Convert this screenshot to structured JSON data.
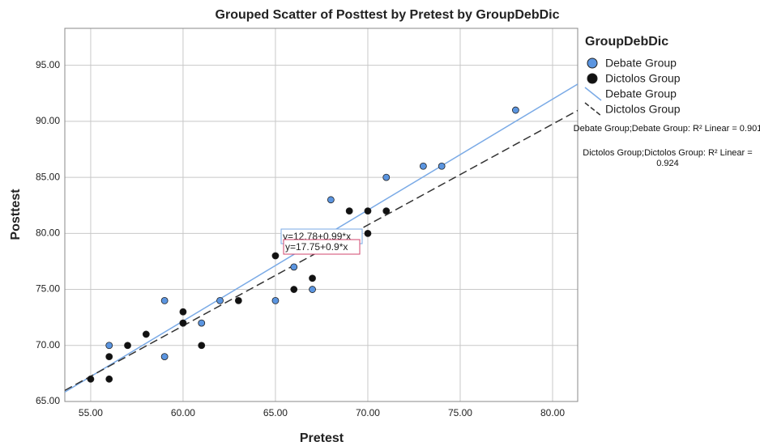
{
  "chart_data": {
    "type": "scatter",
    "title": "Grouped Scatter of Posttest by Pretest by GroupDebDic",
    "x_label": "Pretest",
    "y_label": "Posttest",
    "legend_title": "GroupDebDic",
    "legend": "right",
    "grid": true,
    "xlim": [
      53.6,
      81.36
    ],
    "ylim": [
      65,
      98.3
    ],
    "xticks": [
      {
        "value": 55,
        "label": "55.00"
      },
      {
        "value": 60,
        "label": "60.00"
      },
      {
        "value": 65,
        "label": "65.00"
      },
      {
        "value": 70,
        "label": "70.00"
      },
      {
        "value": 75,
        "label": "75.00"
      },
      {
        "value": 80,
        "label": "80.00"
      }
    ],
    "yticks": [
      {
        "value": 65,
        "label": "65.00"
      },
      {
        "value": 70,
        "label": "70.00"
      },
      {
        "value": 75,
        "label": "75.00"
      },
      {
        "value": 80,
        "label": "80.00"
      },
      {
        "value": 85,
        "label": "85.00"
      },
      {
        "value": 90,
        "label": "90.00"
      },
      {
        "value": 95,
        "label": "95.00"
      }
    ],
    "series": [
      {
        "name": "Debate Group",
        "color": "#5b95e0",
        "line_color": "#7aaae6",
        "dash": false,
        "x": [
          56,
          59,
          59,
          60,
          61,
          62,
          65,
          66,
          67,
          68,
          71,
          73,
          74,
          78
        ],
        "values": [
          70,
          74,
          69,
          72,
          72,
          74,
          74,
          77,
          75,
          83,
          85,
          86,
          86,
          91
        ],
        "fit": {
          "label": "y=12.78+0.99*x",
          "intercept": 12.78,
          "slope": 0.99,
          "box_color": "#7aaae6"
        },
        "r2_label": "Debate Group;Debate Group: R² Linear = 0.901"
      },
      {
        "name": "Dictolos Group",
        "color": "#111111",
        "line_color": "#333333",
        "dash": true,
        "x": [
          55,
          56,
          56,
          57,
          58,
          60,
          60,
          61,
          63,
          65,
          66,
          67,
          69,
          70,
          70,
          71
        ],
        "values": [
          67,
          69,
          67,
          70,
          71,
          73,
          72,
          70,
          74,
          78,
          75,
          76,
          82,
          82,
          80,
          82
        ],
        "fit": {
          "label": "y=17.75+0.9*x",
          "intercept": 17.75,
          "slope": 0.9,
          "box_color": "#d0456e"
        },
        "r2_label": "Dictolos Group;Dictolos Group: R² Linear = 0.924"
      }
    ]
  }
}
